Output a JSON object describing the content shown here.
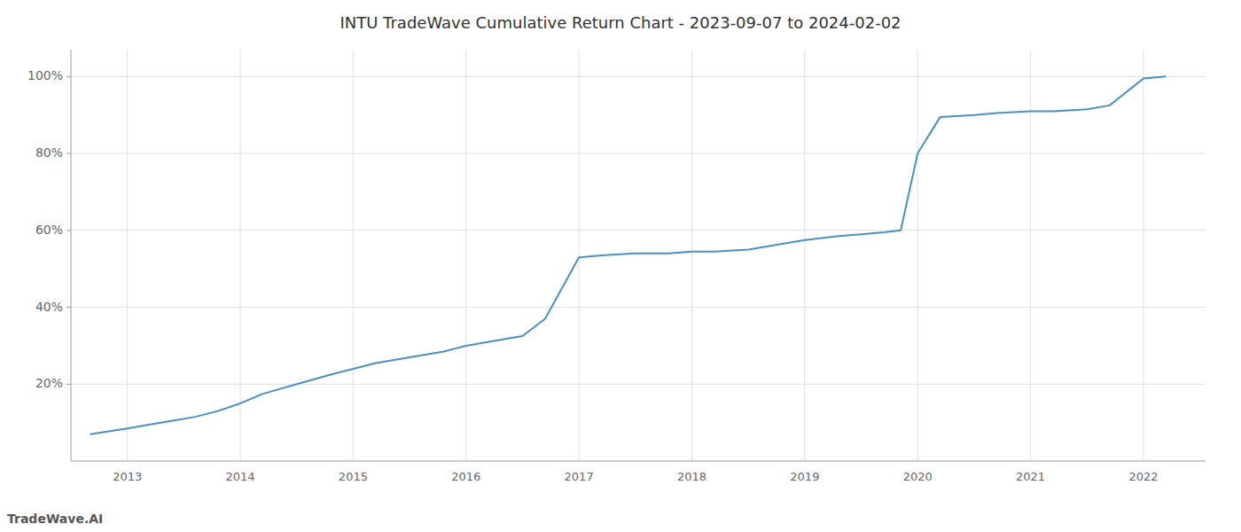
{
  "chart_data": {
    "type": "line",
    "title": "INTU TradeWave Cumulative Return Chart - 2023-09-07 to 2024-02-02",
    "annotations": [
      "TradeWave.AI"
    ],
    "x": [
      2012.67,
      2013.0,
      2013.2,
      2013.4,
      2013.6,
      2013.8,
      2014.0,
      2014.2,
      2014.5,
      2014.8,
      2015.0,
      2015.2,
      2015.5,
      2015.8,
      2016.0,
      2016.2,
      2016.5,
      2016.7,
      2017.0,
      2017.2,
      2017.5,
      2017.8,
      2018.0,
      2018.2,
      2018.5,
      2018.8,
      2019.0,
      2019.15,
      2019.3,
      2019.5,
      2019.7,
      2019.85,
      2020.0,
      2020.2,
      2020.5,
      2020.7,
      2021.0,
      2021.2,
      2021.5,
      2021.7,
      2022.0,
      2022.2
    ],
    "values": [
      7.0,
      8.5,
      9.5,
      10.5,
      11.5,
      13.0,
      15.0,
      17.5,
      20.0,
      22.5,
      24.0,
      25.5,
      27.0,
      28.5,
      30.0,
      31.0,
      32.5,
      37.0,
      53.0,
      53.5,
      54.0,
      54.0,
      54.5,
      54.5,
      55.0,
      56.5,
      57.5,
      58.0,
      58.5,
      59.0,
      59.5,
      60.0,
      80.0,
      89.5,
      90.0,
      90.5,
      91.0,
      91.0,
      91.5,
      92.5,
      99.5,
      100.0
    ],
    "color": "#4a90c4",
    "xlim": [
      2012.5,
      2022.55
    ],
    "ylim": [
      0,
      107
    ],
    "xticks": [
      2013,
      2014,
      2015,
      2016,
      2017,
      2018,
      2019,
      2020,
      2021,
      2022
    ],
    "yticks": [
      {
        "value": 20,
        "label": "20%"
      },
      {
        "value": 40,
        "label": "40%"
      },
      {
        "value": 60,
        "label": "60%"
      },
      {
        "value": 80,
        "label": "80%"
      },
      {
        "value": 100,
        "label": "100%"
      }
    ],
    "grid": true
  }
}
